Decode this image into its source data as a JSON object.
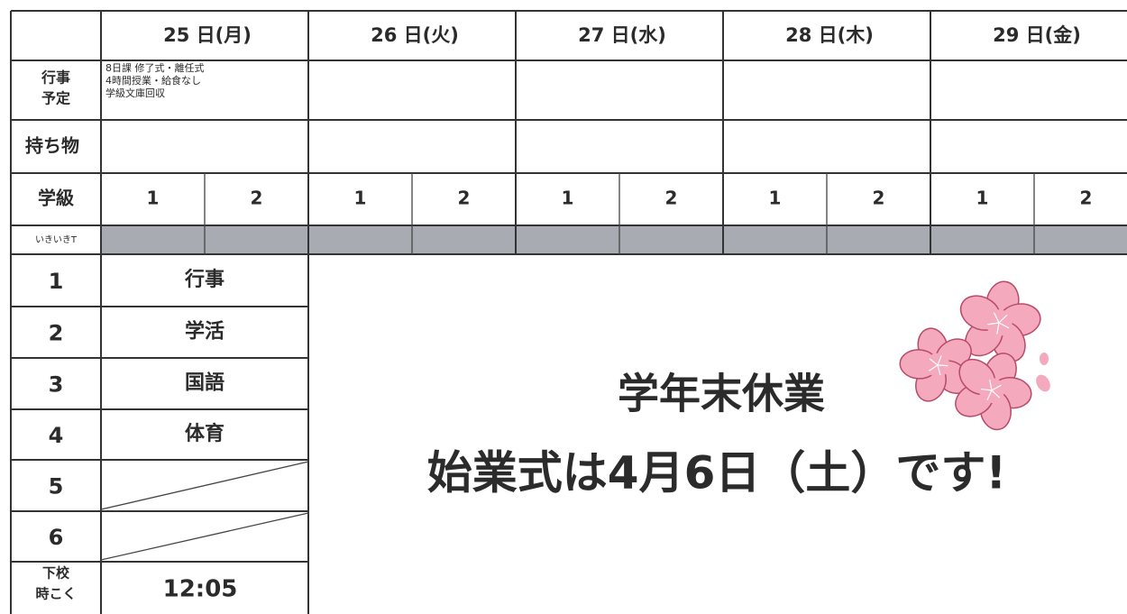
{
  "header": {
    "days": [
      "25 日(月)",
      "26 日(火)",
      "27 日(水)",
      "28 日(木)",
      "29 日(金)"
    ]
  },
  "events": {
    "label": [
      "行事",
      "予定"
    ],
    "day_items": [
      [
        "8日課 修了式・離任式",
        "4時間授業・給食なし",
        "学級文庫回収"
      ]
    ]
  },
  "belongings": {
    "label": "持ち物"
  },
  "class_row": {
    "label": "学級",
    "classes": [
      "1",
      "2"
    ]
  },
  "ikiiki": {
    "label": "いきいきT"
  },
  "periods": [
    {
      "label": "1",
      "subject": "行事"
    },
    {
      "label": "2",
      "subject": "学活"
    },
    {
      "label": "3",
      "subject": "国語"
    },
    {
      "label": "4",
      "subject": "体育"
    },
    {
      "label": "5"
    },
    {
      "label": "6"
    }
  ],
  "dismissal": {
    "label": [
      "下校",
      "時こく"
    ],
    "time": "12:05"
  },
  "banner": {
    "line1": "学年末休業",
    "line2": "始業式は4月6日（土）です!"
  }
}
